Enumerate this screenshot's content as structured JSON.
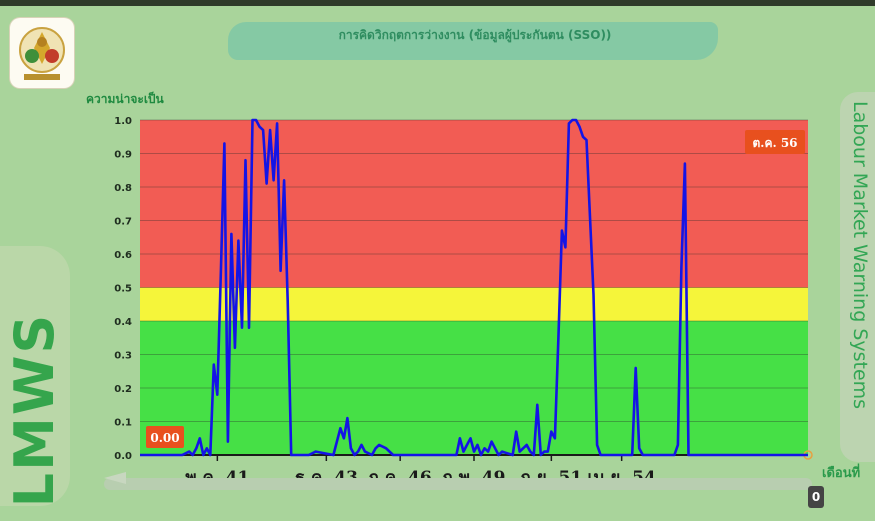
{
  "header": {
    "title": "การคิดวิกฤตการว่างงาน (ข้อมูลผู้ประกันตน (SSO))"
  },
  "side": {
    "left_brand": "LMWS",
    "right_brand": "Labour Market Warning Systems"
  },
  "scroll": {
    "badge": "0"
  },
  "colors": {
    "zone_high": "#f25c54",
    "zone_mid": "#f5f53a",
    "zone_low": "#46e046",
    "line": "#1414e6",
    "badge": "#e8501e"
  },
  "chart_data": {
    "type": "line",
    "ylabel": "ความน่าจะเป็น",
    "xlabel": "เดือนที่",
    "ylim": [
      0,
      1.0
    ],
    "xlim": [
      0,
      190
    ],
    "yticks": [
      0.0,
      0.1,
      0.2,
      0.3,
      0.4,
      0.5,
      0.6,
      0.7,
      0.8,
      0.9,
      1.0
    ],
    "ytick_labels": [
      "0.0",
      "0.1",
      "0.2",
      "0.3",
      "0.4",
      "0.5",
      "0.6",
      "0.7",
      "0.8",
      "0.9",
      "1.0"
    ],
    "xticks": [
      {
        "x": 22,
        "label": "พ.ค. 41"
      },
      {
        "x": 53,
        "label": "ธ.ค. 43"
      },
      {
        "x": 74,
        "label": "ก.ค. 46"
      },
      {
        "x": 95,
        "label": "ก.พ. 49"
      },
      {
        "x": 117,
        "label": "ก.ย. 51"
      },
      {
        "x": 137,
        "label": "เม.ย. 54"
      }
    ],
    "zones": [
      {
        "from": 0.0,
        "to": 0.4,
        "color": "#46e046"
      },
      {
        "from": 0.4,
        "to": 0.5,
        "color": "#f5f53a"
      },
      {
        "from": 0.5,
        "to": 1.0,
        "color": "#f25c54"
      }
    ],
    "annotations": [
      {
        "text": "0.00",
        "x": 0,
        "y": 0.0
      },
      {
        "text": "ต.ค. 56",
        "x": 154,
        "y": 0.87
      }
    ],
    "series": [
      {
        "x": [
          0,
          12,
          14,
          15,
          16,
          17,
          18,
          19,
          20,
          21,
          22,
          23,
          24,
          25,
          26,
          27,
          28,
          29,
          30,
          31,
          32,
          33,
          34,
          35,
          36,
          37,
          38,
          39,
          40,
          41,
          42,
          43,
          48,
          50,
          55,
          56,
          57,
          58,
          59,
          60,
          61,
          62,
          63,
          64,
          66,
          67,
          68,
          70,
          72,
          90,
          91,
          92,
          93,
          94,
          95,
          96,
          97,
          98,
          99,
          100,
          101,
          102,
          103,
          106,
          107,
          108,
          110,
          111,
          112,
          113,
          114,
          115,
          116,
          117,
          118,
          119,
          120,
          121,
          122,
          123,
          124,
          125,
          126,
          127,
          128,
          129,
          130,
          131,
          132,
          140,
          141,
          142,
          143,
          152,
          153,
          154,
          155,
          156,
          157,
          190
        ],
        "y": [
          0,
          0,
          0.01,
          0,
          0.02,
          0.05,
          0,
          0.02,
          0,
          0.27,
          0.18,
          0.55,
          0.93,
          0.04,
          0.66,
          0.32,
          0.64,
          0.38,
          0.88,
          0.38,
          1.0,
          1.0,
          0.98,
          0.97,
          0.81,
          0.97,
          0.82,
          0.99,
          0.55,
          0.82,
          0.46,
          0,
          0,
          0.01,
          0,
          0.04,
          0.08,
          0.05,
          0.11,
          0.02,
          0,
          0.01,
          0.03,
          0.01,
          0,
          0.02,
          0.03,
          0.02,
          0,
          0,
          0.05,
          0.01,
          0.03,
          0.05,
          0.01,
          0.03,
          0,
          0.02,
          0.01,
          0.04,
          0.02,
          0,
          0.01,
          0,
          0.07,
          0.01,
          0.03,
          0.01,
          0,
          0.15,
          0,
          0.01,
          0.01,
          0.07,
          0.05,
          0.35,
          0.67,
          0.62,
          0.99,
          1.0,
          1.0,
          0.98,
          0.95,
          0.94,
          0.71,
          0.48,
          0.03,
          0,
          0,
          0,
          0.26,
          0.02,
          0,
          0,
          0.03,
          0.56,
          0.87,
          0,
          0,
          0
        ]
      }
    ]
  }
}
